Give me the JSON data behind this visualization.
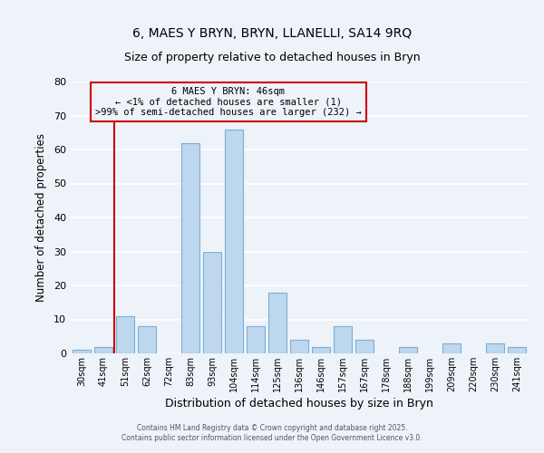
{
  "title": "6, MAES Y BRYN, BRYN, LLANELLI, SA14 9RQ",
  "subtitle": "Size of property relative to detached houses in Bryn",
  "xlabel": "Distribution of detached houses by size in Bryn",
  "ylabel": "Number of detached properties",
  "categories": [
    "30sqm",
    "41sqm",
    "51sqm",
    "62sqm",
    "72sqm",
    "83sqm",
    "93sqm",
    "104sqm",
    "114sqm",
    "125sqm",
    "136sqm",
    "146sqm",
    "157sqm",
    "167sqm",
    "178sqm",
    "188sqm",
    "199sqm",
    "209sqm",
    "220sqm",
    "230sqm",
    "241sqm"
  ],
  "values": [
    1,
    2,
    11,
    8,
    0,
    62,
    30,
    66,
    8,
    18,
    4,
    2,
    8,
    4,
    0,
    2,
    0,
    3,
    0,
    3,
    2
  ],
  "bar_color": "#bdd7ee",
  "bar_edge_color": "#7ab0d4",
  "ylim": [
    0,
    80
  ],
  "yticks": [
    0,
    10,
    20,
    30,
    40,
    50,
    60,
    70,
    80
  ],
  "marker_line_color": "#cc0000",
  "annotation_text": "6 MAES Y BRYN: 46sqm\n← <1% of detached houses are smaller (1)\n>99% of semi-detached houses are larger (232) →",
  "annotation_box_color": "#cc0000",
  "footer_line1": "Contains HM Land Registry data © Crown copyright and database right 2025.",
  "footer_line2": "Contains public sector information licensed under the Open Government Licence v3.0.",
  "bg_color": "#eef2f9"
}
